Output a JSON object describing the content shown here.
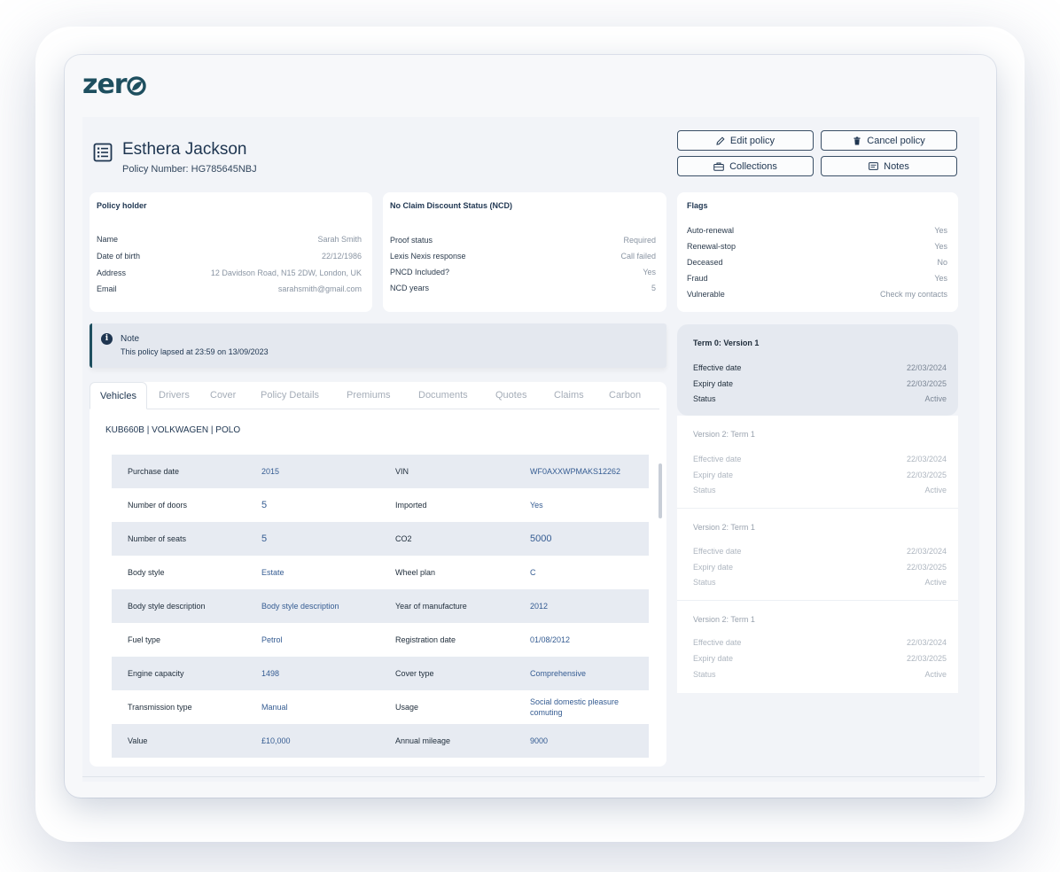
{
  "app": {
    "logo": "zer"
  },
  "header": {
    "holder_name": "Esthera Jackson",
    "policy_number": "Policy Number: HG785645NBJ"
  },
  "actions": {
    "edit_policy": "Edit policy",
    "cancel_policy": "Cancel policy",
    "collections": "Collections",
    "notes": "Notes"
  },
  "policy_holder": {
    "title": "Policy holder",
    "rows": [
      {
        "key": "Name",
        "value": "Sarah Smith"
      },
      {
        "key": "Date of birth",
        "value": "22/12/1986"
      },
      {
        "key": "Address",
        "value": "12 Davidson Road, N15 2DW, London, UK"
      },
      {
        "key": "Email",
        "value": "sarahsmith@gmail.com"
      }
    ]
  },
  "ncd": {
    "title": "No Claim Discount Status (NCD)",
    "rows": [
      {
        "key": "Proof status",
        "value": "Required"
      },
      {
        "key": "Lexis Nexis response",
        "value": "Call failed"
      },
      {
        "key": "PNCD Included?",
        "value": "Yes"
      },
      {
        "key": "NCD years",
        "value": "5"
      }
    ]
  },
  "flags": {
    "title": "Flags",
    "rows": [
      {
        "key": "Auto-renewal",
        "value": "Yes"
      },
      {
        "key": "Renewal-stop",
        "value": "Yes"
      },
      {
        "key": "Deceased",
        "value": "No"
      },
      {
        "key": "Fraud",
        "value": "Yes"
      },
      {
        "key": "Vulnerable",
        "value": "Check my contacts"
      }
    ]
  },
  "note": {
    "title": "Note",
    "text": "This policy lapsed at 23:59 on 13/09/2023"
  },
  "tabs": [
    "Vehicles",
    "Drivers",
    "Cover",
    "Policy Details",
    "Premiums",
    "Documents",
    "Quotes",
    "Claims",
    "Carbon"
  ],
  "vehicle": {
    "title": "KUB660B | VOLKWAGEN | POLO",
    "rows": [
      {
        "k1": "Purchase date",
        "v1": "2015",
        "k2": "VIN",
        "v2": "WF0AXXWPMAKS12262"
      },
      {
        "k1": "Number of doors",
        "v1": "5",
        "k2": "Imported",
        "v2": "Yes"
      },
      {
        "k1": "Number of seats",
        "v1": "5",
        "k2": "CO2",
        "v2": "5000"
      },
      {
        "k1": "Body style",
        "v1": "Estate",
        "k2": "Wheel plan",
        "v2": "C"
      },
      {
        "k1": "Body style description",
        "v1": "Body style description",
        "k2": "Year of manufacture",
        "v2": "2012"
      },
      {
        "k1": "Fuel type",
        "v1": "Petrol",
        "k2": "Registration date",
        "v2": "01/08/2012"
      },
      {
        "k1": "Engine capacity",
        "v1": "1498",
        "k2": "Cover type",
        "v2": "Comprehensive"
      },
      {
        "k1": "Transmission type",
        "v1": "Manual",
        "k2": "Usage",
        "v2": "Social domestic pleasure comuting"
      },
      {
        "k1": "Value",
        "v1": "£10,000",
        "k2": "Annual mileage",
        "v2": "9000"
      }
    ]
  },
  "versions": [
    {
      "title": "Term 0: Version 1",
      "active": true,
      "rows": [
        {
          "key": "Effective date",
          "value": "22/03/2024"
        },
        {
          "key": "Expiry date",
          "value": "22/03/2025"
        },
        {
          "key": "Status",
          "value": "Active"
        }
      ]
    },
    {
      "title": "Version 2: Term 1",
      "active": false,
      "rows": [
        {
          "key": "Effective date",
          "value": "22/03/2024"
        },
        {
          "key": "Expiry date",
          "value": "22/03/2025"
        },
        {
          "key": "Status",
          "value": "Active"
        }
      ]
    },
    {
      "title": "Version 2: Term 1",
      "active": false,
      "rows": [
        {
          "key": "Effective date",
          "value": "22/03/2024"
        },
        {
          "key": "Expiry date",
          "value": "22/03/2025"
        },
        {
          "key": "Status",
          "value": "Active"
        }
      ]
    },
    {
      "title": "Version 2: Term 1",
      "active": false,
      "rows": [
        {
          "key": "Effective date",
          "value": "22/03/2024"
        },
        {
          "key": "Expiry date",
          "value": "22/03/2025"
        },
        {
          "key": "Status",
          "value": "Active"
        }
      ]
    }
  ],
  "colors": {
    "brand": "#1e4f5f",
    "primary_text": "#1e3550",
    "link": "#355c92",
    "row_shade": "#e7ebf2"
  }
}
